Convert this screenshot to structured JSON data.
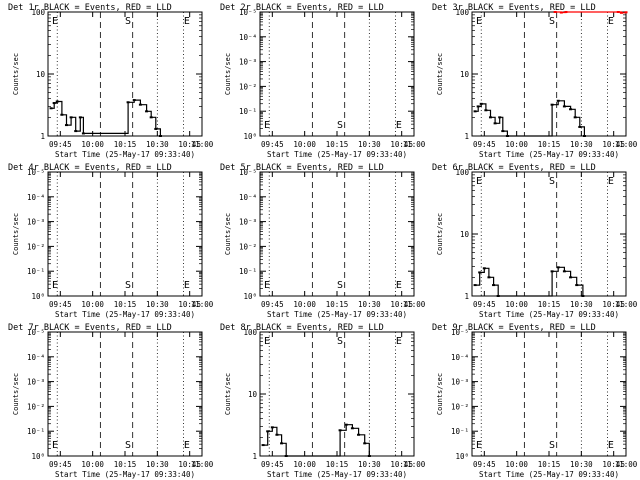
{
  "panels": [
    {
      "title": "Det 1r BLACK = Events, RED = LLD",
      "xlabel": "Start Time (25-May-17 09:33:40)",
      "ylabel": "Counts/sec",
      "yscale": "log",
      "ytick_labels": [
        "100",
        "10",
        "1"
      ],
      "xtick_labels": [
        "09:45",
        "10:00",
        "10:15",
        "10:30",
        "10:45",
        "11:00"
      ],
      "markers": [
        {
          "label": "E",
          "t": 0
        },
        {
          "label": "S",
          "t": 0.5
        },
        {
          "label": "E",
          "t": 0.96
        }
      ],
      "series": [
        {
          "color": "#000000",
          "points": [
            [
              0.02,
              2.8
            ],
            [
              0.04,
              3.4
            ],
            [
              0.06,
              3.6
            ],
            [
              0.09,
              2.2
            ],
            [
              0.12,
              1.5
            ],
            [
              0.15,
              2.0
            ],
            [
              0.18,
              1.2
            ],
            [
              0.21,
              2.0
            ],
            [
              0.23,
              1.1
            ],
            [
              0.52,
              3.5
            ],
            [
              0.56,
              3.8
            ],
            [
              0.6,
              3.2
            ],
            [
              0.64,
              2.5
            ],
            [
              0.67,
              2.0
            ],
            [
              0.7,
              1.3
            ],
            [
              0.73,
              1.0
            ]
          ]
        }
      ]
    },
    {
      "title": "Det 2r BLACK = Events, RED = LLD",
      "xlabel": "Start Time (25-May-17 09:33:40)",
      "ylabel": "Counts/sec",
      "yscale": "log",
      "ytick_labels": [
        "10⁻⁵",
        "10⁻⁴",
        "10⁻³",
        "10⁻²",
        "10⁻¹",
        "10⁰"
      ],
      "xtick_labels": [
        "09:45",
        "10:00",
        "10:15",
        "10:30",
        "10:45",
        "11:00"
      ],
      "markers": [
        {
          "label": "E",
          "t": 0
        },
        {
          "label": "S",
          "t": 0.5
        },
        {
          "label": "E",
          "t": 0.96
        }
      ],
      "series": []
    },
    {
      "title": "Det 3r BLACK = Events, RED = LLD",
      "xlabel": "Start Time (25-May-17 09:33:40)",
      "ylabel": "Counts/sec",
      "yscale": "log",
      "ytick_labels": [
        "100",
        "10",
        "1"
      ],
      "xtick_labels": [
        "09:45",
        "10:00",
        "10:15",
        "10:30",
        "10:45",
        "11:00"
      ],
      "markers": [
        {
          "label": "E",
          "t": 0
        },
        {
          "label": "S",
          "t": 0.5
        },
        {
          "label": "E",
          "t": 0.96
        }
      ],
      "series": [
        {
          "color": "#000000",
          "points": [
            [
              0.02,
              2.5
            ],
            [
              0.04,
              3.0
            ],
            [
              0.06,
              3.3
            ],
            [
              0.09,
              2.6
            ],
            [
              0.12,
              2.0
            ],
            [
              0.15,
              1.6
            ],
            [
              0.18,
              2.0
            ],
            [
              0.2,
              1.2
            ],
            [
              0.23,
              1.0
            ],
            [
              0.52,
              3.2
            ],
            [
              0.56,
              3.7
            ],
            [
              0.6,
              3.0
            ],
            [
              0.64,
              2.7
            ],
            [
              0.67,
              2.0
            ],
            [
              0.7,
              1.4
            ],
            [
              0.73,
              1.0
            ]
          ]
        },
        {
          "color": "#ff0000",
          "points": [
            [
              0.54,
              100
            ],
            [
              0.58,
              98
            ],
            [
              0.61,
              100
            ],
            [
              0.95,
              100
            ],
            [
              0.97,
              97
            ],
            [
              1.0,
              99
            ]
          ]
        }
      ]
    },
    {
      "title": "Det 4r BLACK = Events, RED = LLD",
      "xlabel": "Start Time (25-May-17 09:33:40)",
      "ylabel": "Counts/sec",
      "yscale": "log",
      "ytick_labels": [
        "10⁻⁵",
        "10⁻⁴",
        "10⁻³",
        "10⁻²",
        "10⁻¹",
        "10⁰"
      ],
      "xtick_labels": [
        "09:45",
        "10:00",
        "10:15",
        "10:30",
        "10:45",
        "11:00"
      ],
      "markers": [
        {
          "label": "E",
          "t": 0
        },
        {
          "label": "S",
          "t": 0.5
        },
        {
          "label": "E",
          "t": 0.96
        }
      ],
      "series": []
    },
    {
      "title": "Det 5r BLACK = Events, RED = LLD",
      "xlabel": "Start Time (25-May-17 09:33:40)",
      "ylabel": "Counts/sec",
      "yscale": "log",
      "ytick_labels": [
        "10⁻⁵",
        "10⁻⁴",
        "10⁻³",
        "10⁻²",
        "10⁻¹",
        "10⁰"
      ],
      "xtick_labels": [
        "09:45",
        "10:00",
        "10:15",
        "10:30",
        "10:45",
        "11:00"
      ],
      "markers": [
        {
          "label": "E",
          "t": 0
        },
        {
          "label": "S",
          "t": 0.5
        },
        {
          "label": "E",
          "t": 0.96
        }
      ],
      "series": []
    },
    {
      "title": "Det 6r BLACK = Events, RED = LLD",
      "xlabel": "Start Time (25-May-17 09:33:40)",
      "ylabel": "Counts/sec",
      "yscale": "log",
      "ytick_labels": [
        "100",
        "10",
        "1"
      ],
      "xtick_labels": [
        "09:45",
        "10:00",
        "10:15",
        "10:30",
        "10:45",
        "11:00"
      ],
      "markers": [
        {
          "label": "E",
          "t": 0
        },
        {
          "label": "S",
          "t": 0.5
        },
        {
          "label": "E",
          "t": 0.96
        }
      ],
      "series": [
        {
          "color": "#000000",
          "points": [
            [
              0.02,
              1.5
            ],
            [
              0.05,
              2.4
            ],
            [
              0.08,
              2.8
            ],
            [
              0.11,
              2.0
            ],
            [
              0.14,
              1.5
            ],
            [
              0.17,
              1.0
            ],
            [
              0.52,
              2.5
            ],
            [
              0.56,
              2.9
            ],
            [
              0.6,
              2.5
            ],
            [
              0.64,
              2.0
            ],
            [
              0.68,
              1.5
            ],
            [
              0.72,
              1.0
            ]
          ]
        }
      ]
    },
    {
      "title": "Det 7r BLACK = Events, RED = LLD",
      "xlabel": "Start Time (25-May-17 09:33:40)",
      "ylabel": "Counts/sec",
      "yscale": "log",
      "ytick_labels": [
        "10⁻⁵",
        "10⁻⁴",
        "10⁻³",
        "10⁻²",
        "10⁻¹",
        "10⁰"
      ],
      "xtick_labels": [
        "09:45",
        "10:00",
        "10:15",
        "10:30",
        "10:45",
        "11:00"
      ],
      "markers": [
        {
          "label": "E",
          "t": 0
        },
        {
          "label": "S",
          "t": 0.5
        },
        {
          "label": "E",
          "t": 0.96
        }
      ],
      "series": []
    },
    {
      "title": "Det 8r BLACK = Events, RED = LLD",
      "xlabel": "Start Time (25-May-17 09:33:40)",
      "ylabel": "Counts/sec",
      "yscale": "log",
      "ytick_labels": [
        "100",
        "10",
        "1"
      ],
      "xtick_labels": [
        "09:45",
        "10:00",
        "10:15",
        "10:30",
        "10:45",
        "11:00"
      ],
      "markers": [
        {
          "label": "E",
          "t": 0
        },
        {
          "label": "S",
          "t": 0.5
        },
        {
          "label": "E",
          "t": 0.96
        }
      ],
      "series": [
        {
          "color": "#000000",
          "points": [
            [
              0.02,
              1.5
            ],
            [
              0.05,
              2.5
            ],
            [
              0.08,
              2.9
            ],
            [
              0.11,
              2.2
            ],
            [
              0.14,
              1.6
            ],
            [
              0.17,
              1.0
            ],
            [
              0.52,
              2.6
            ],
            [
              0.56,
              3.2
            ],
            [
              0.6,
              2.8
            ],
            [
              0.64,
              2.2
            ],
            [
              0.68,
              1.6
            ],
            [
              0.71,
              1.0
            ]
          ]
        }
      ]
    },
    {
      "title": "Det 9r BLACK = Events, RED = LLD",
      "xlabel": "Start Time (25-May-17 09:33:40)",
      "ylabel": "Counts/sec",
      "yscale": "log",
      "ytick_labels": [
        "10⁻⁵",
        "10⁻⁴",
        "10⁻³",
        "10⁻²",
        "10⁻¹",
        "10⁰"
      ],
      "xtick_labels": [
        "09:45",
        "10:00",
        "10:15",
        "10:30",
        "10:45",
        "11:00"
      ],
      "markers": [
        {
          "label": "E",
          "t": 0
        },
        {
          "label": "S",
          "t": 0.5
        },
        {
          "label": "E",
          "t": 0.96
        }
      ],
      "series": []
    }
  ]
}
